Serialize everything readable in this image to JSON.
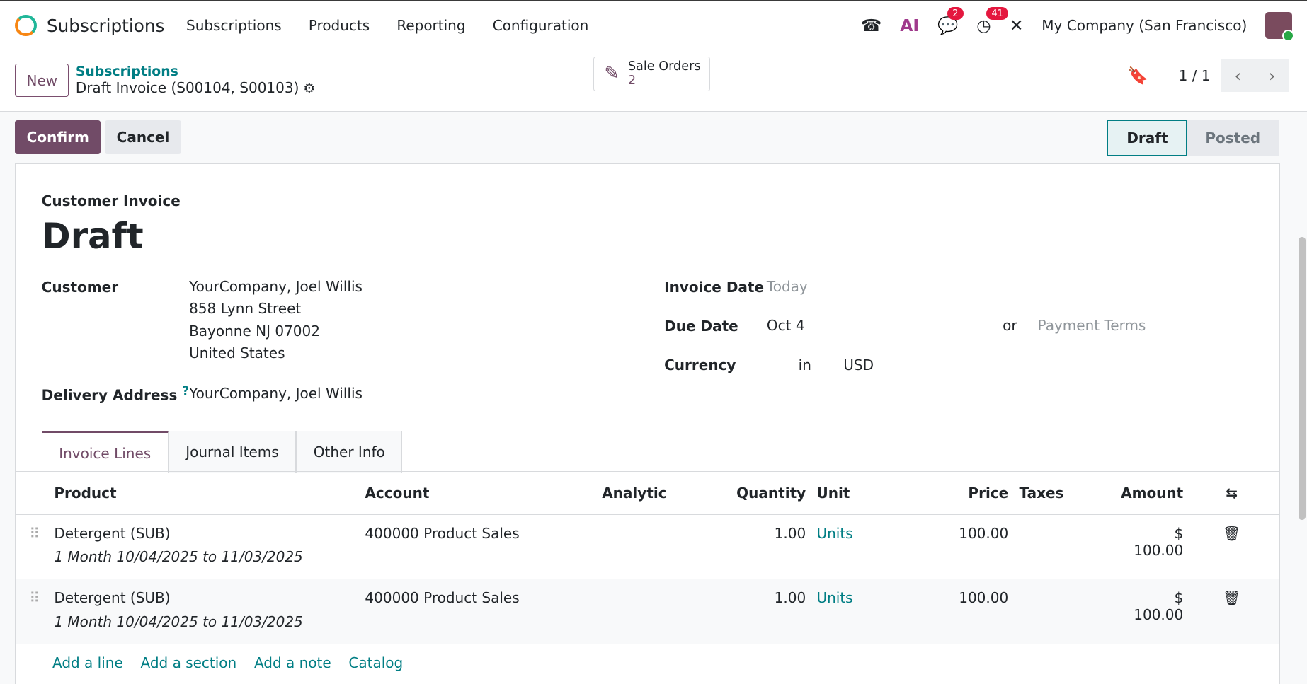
{
  "nav": {
    "app_title": "Subscriptions",
    "menu": [
      "Subscriptions",
      "Products",
      "Reporting",
      "Configuration"
    ],
    "messages_count": "2",
    "activities_count": "41",
    "company": "My Company (San Francisco)"
  },
  "control": {
    "new_label": "New",
    "breadcrumb_parent": "Subscriptions",
    "breadcrumb_current": "Draft Invoice (S00104, S00103)",
    "smart_button": {
      "label": "Sale Orders",
      "count": "2"
    },
    "pager": "1 / 1"
  },
  "actions": {
    "confirm": "Confirm",
    "cancel": "Cancel"
  },
  "status": {
    "steps": [
      "Draft",
      "Posted"
    ],
    "current": "Draft"
  },
  "form": {
    "type": "Customer Invoice",
    "title": "Draft",
    "customer_label": "Customer",
    "customer_lines": [
      "YourCompany, Joel Willis",
      "858 Lynn Street",
      "Bayonne NJ 07002",
      "United States"
    ],
    "delivery_label": "Delivery Address",
    "delivery_help": "?",
    "delivery_value": "YourCompany, Joel Willis",
    "invoice_date_label": "Invoice Date",
    "invoice_date_placeholder": "Today",
    "due_date_label": "Due Date",
    "due_date_value": "Oct 4",
    "or": "or",
    "payment_terms_placeholder": "Payment Terms",
    "currency_label": "Currency",
    "currency_in": "in",
    "currency_value": "USD"
  },
  "tabs": [
    "Invoice Lines",
    "Journal Items",
    "Other Info"
  ],
  "table": {
    "headers": [
      "Product",
      "Account",
      "Analytic",
      "Quantity",
      "Unit",
      "Price",
      "Taxes",
      "Amount"
    ],
    "rows": [
      {
        "product": "Detergent (SUB)",
        "description": "1 Month 10/04/2025 to 11/03/2025",
        "account": "400000 Product Sales",
        "quantity": "1.00",
        "unit": "Units",
        "price": "100.00",
        "amount": "$ 100.00"
      },
      {
        "product": "Detergent (SUB)",
        "description": "1 Month 10/04/2025 to 11/03/2025",
        "account": "400000 Product Sales",
        "quantity": "1.00",
        "unit": "Units",
        "price": "100.00",
        "amount": "$ 100.00"
      }
    ]
  },
  "add_links": [
    "Add a line",
    "Add a section",
    "Add a note",
    "Catalog"
  ]
}
